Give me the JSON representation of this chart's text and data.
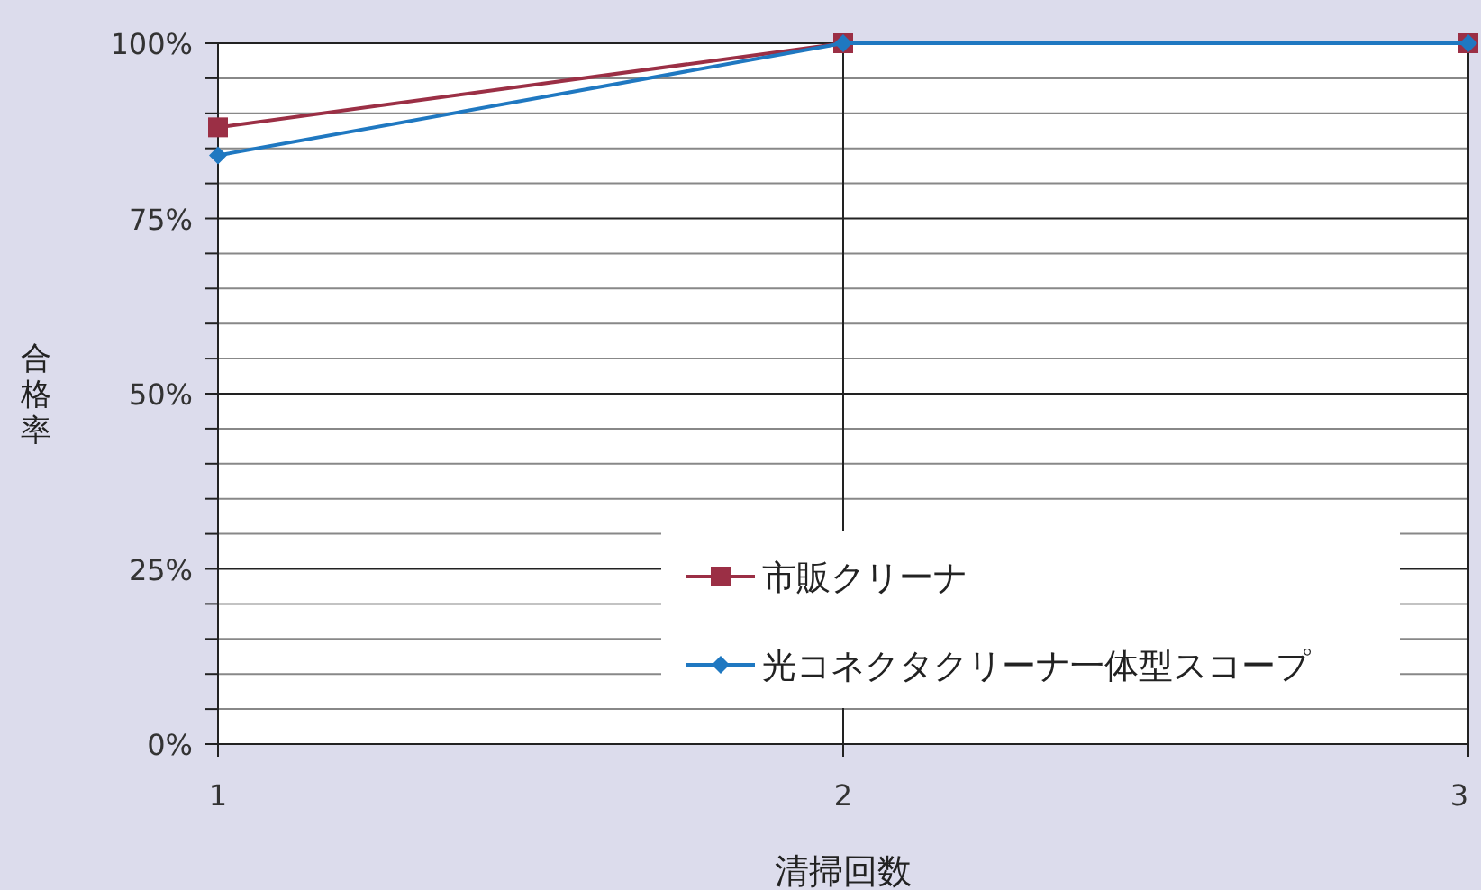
{
  "chart_data": {
    "type": "line",
    "xlabel": "清掃回数",
    "ylabel": "合格率",
    "x": [
      1,
      2,
      3
    ],
    "xlim": [
      1,
      3
    ],
    "xticks": [
      1,
      2,
      3
    ],
    "ylim": [
      0,
      100
    ],
    "yticks": [
      {
        "value": 0,
        "label": "0%"
      },
      {
        "value": 5,
        "label": null
      },
      {
        "value": 10,
        "label": null
      },
      {
        "value": 15,
        "label": null
      },
      {
        "value": 20,
        "label": null
      },
      {
        "value": 25,
        "label": "25%"
      },
      {
        "value": 30,
        "label": null
      },
      {
        "value": 35,
        "label": null
      },
      {
        "value": 40,
        "label": null
      },
      {
        "value": 45,
        "label": null
      },
      {
        "value": 50,
        "label": "50%"
      },
      {
        "value": 55,
        "label": null
      },
      {
        "value": 60,
        "label": null
      },
      {
        "value": 65,
        "label": null
      },
      {
        "value": 70,
        "label": null
      },
      {
        "value": 75,
        "label": "75%"
      },
      {
        "value": 80,
        "label": null
      },
      {
        "value": 85,
        "label": null
      },
      {
        "value": 90,
        "label": null
      },
      {
        "value": 95,
        "label": null
      },
      {
        "value": 100,
        "label": "100%"
      }
    ],
    "grid": true,
    "legend": "bottom right",
    "series": [
      {
        "name": "市販クリーナ",
        "color": "#9b2f45",
        "marker": "square",
        "values": [
          88,
          100,
          100
        ]
      },
      {
        "name": "光コネクタクリーナ一体型スコープ",
        "color": "#1f78c1",
        "marker": "diamond",
        "values": [
          84,
          100,
          100
        ]
      }
    ]
  }
}
